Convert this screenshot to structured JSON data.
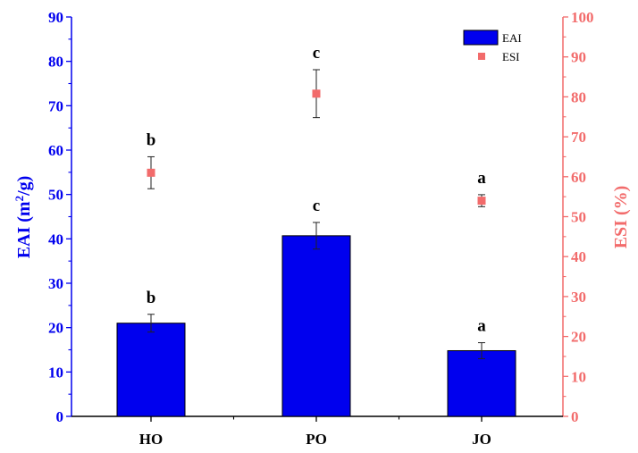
{
  "chart_data": {
    "type": "bar",
    "categories": [
      "HO",
      "PO",
      "JO"
    ],
    "series": [
      {
        "name": "EAI",
        "kind": "bar",
        "axis": "left",
        "values": [
          21.0,
          40.7,
          14.8
        ],
        "errors": [
          2.0,
          3.0,
          1.8
        ],
        "labels": [
          "b",
          "c",
          "a"
        ],
        "color": "#0000ee"
      },
      {
        "name": "ESI",
        "kind": "scatter",
        "axis": "right",
        "values": [
          61.0,
          80.8,
          54.0
        ],
        "errors": [
          4.0,
          6.0,
          1.5
        ],
        "labels": [
          "b",
          "c",
          "a"
        ],
        "color": "#f26b6b"
      }
    ],
    "ylabel_left": {
      "main": "EAI (m",
      "sup": "2",
      "tail": "/g)"
    },
    "ylabel_right": "ESI (%)",
    "ylim_left": [
      0,
      90
    ],
    "ylim_right": [
      0,
      100
    ],
    "yticks_left": [
      "0",
      "10",
      "20",
      "30",
      "40",
      "50",
      "60",
      "70",
      "80",
      "90"
    ],
    "yticks_right": [
      "0",
      "10",
      "20",
      "30",
      "40",
      "50",
      "60",
      "70",
      "80",
      "90",
      "100"
    ],
    "left_axis_color": "#0000ee",
    "right_axis_color": "#f26b6b",
    "legend_position": "top-right",
    "grid": false
  }
}
